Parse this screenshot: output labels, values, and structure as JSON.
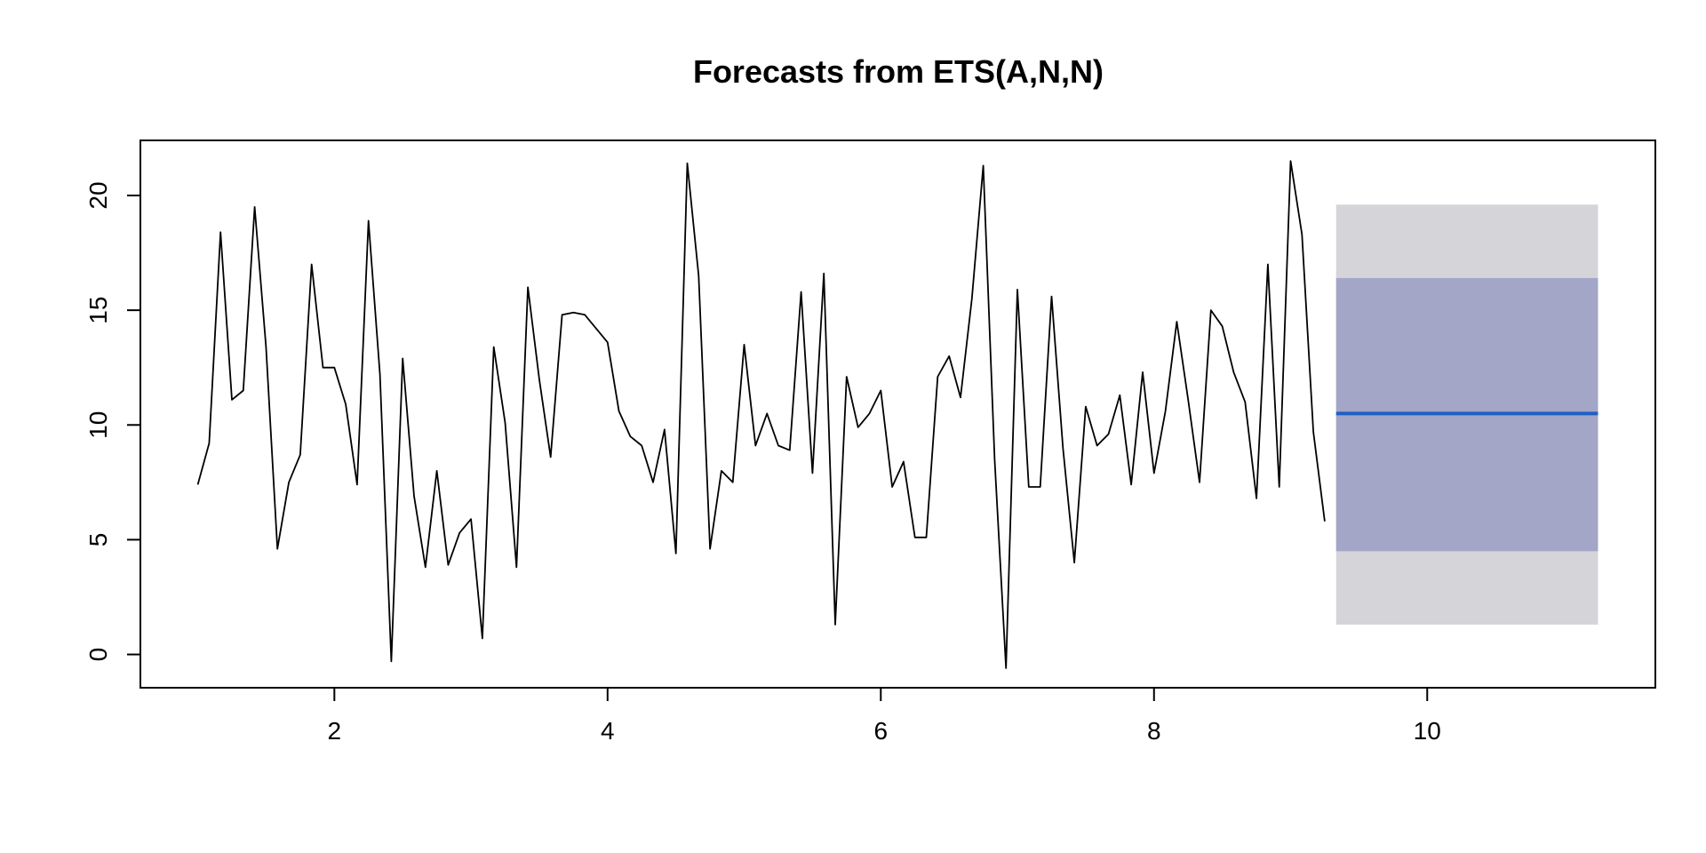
{
  "chart_data": {
    "type": "line",
    "title": "Forecasts from ETS(A,N,N)",
    "xlabel": "",
    "ylabel": "",
    "xlim": [
      0.58,
      11.67
    ],
    "ylim": [
      -1.45,
      22.4
    ],
    "x_ticks": [
      2,
      4,
      6,
      8,
      10
    ],
    "y_ticks": [
      0,
      5,
      10,
      15,
      20
    ],
    "grid": false,
    "colors": {
      "series": "#000000",
      "forecast": "#1F5FC4",
      "band80": "#A3A6C6",
      "band95": "#D4D4D9"
    },
    "series": [
      {
        "x": [
          1.0,
          1.0833,
          1.1667,
          1.25,
          1.3333,
          1.4167,
          1.5,
          1.5833,
          1.6667,
          1.75,
          1.8333,
          1.9167,
          2.0,
          2.0833,
          2.1667,
          2.25,
          2.3333,
          2.4167,
          2.5,
          2.5833,
          2.6667,
          2.75,
          2.8333,
          2.9167,
          3.0,
          3.0833,
          3.1667,
          3.25,
          3.3333,
          3.4167,
          3.5,
          3.5833,
          3.6667,
          3.75,
          3.8333,
          3.9167,
          4.0,
          4.0833,
          4.1667,
          4.25,
          4.3333,
          4.4167,
          4.5,
          4.5833,
          4.6667,
          4.75,
          4.8333,
          4.9167,
          5.0,
          5.0833,
          5.1667,
          5.25,
          5.3333,
          5.4167,
          5.5,
          5.5833,
          5.6667,
          5.75,
          5.8333,
          5.9167,
          6.0,
          6.0833,
          6.1667,
          6.25,
          6.3333,
          6.4167,
          6.5,
          6.5833,
          6.6667,
          6.75,
          6.8333,
          6.9167,
          7.0,
          7.0833,
          7.1667,
          7.25,
          7.3333,
          7.4167,
          7.5,
          7.5833,
          7.6667,
          7.75,
          7.8333,
          7.9167,
          8.0,
          8.0833,
          8.1667,
          8.25,
          8.3333,
          8.4167,
          8.5,
          8.5833,
          8.6667,
          8.75,
          8.8333,
          8.9167,
          9.0,
          9.0833,
          9.1667,
          9.25
        ],
        "values": [
          7.4,
          9.2,
          18.4,
          11.1,
          11.5,
          19.5,
          13.4,
          4.6,
          7.5,
          8.7,
          17.0,
          12.5,
          12.5,
          10.9,
          7.4,
          18.9,
          12.2,
          -0.3,
          12.9,
          6.9,
          3.8,
          8.0,
          3.9,
          5.3,
          5.9,
          0.7,
          13.4,
          10.1,
          3.8,
          16.0,
          12.0,
          8.6,
          14.8,
          14.9,
          14.8,
          14.2,
          13.6,
          10.6,
          9.5,
          9.1,
          7.5,
          9.8,
          4.4,
          21.4,
          16.5,
          4.6,
          8.0,
          7.5,
          13.5,
          9.1,
          10.5,
          9.1,
          8.9,
          15.8,
          7.9,
          16.6,
          1.3,
          12.1,
          9.9,
          10.5,
          11.5,
          7.3,
          8.4,
          5.1,
          5.1,
          12.1,
          13.0,
          11.2,
          15.5,
          21.3,
          8.5,
          -0.6,
          15.9,
          7.3,
          7.3,
          15.6,
          9.0,
          4.0,
          10.8,
          9.1,
          9.6,
          11.3,
          7.4,
          12.3,
          7.9,
          10.6,
          14.5,
          11.1,
          7.5,
          15.0,
          14.3,
          12.3,
          11.0,
          6.8,
          17.0,
          7.3,
          21.5,
          18.3,
          9.7,
          5.8
        ]
      }
    ],
    "forecast": {
      "x_start": 9.3333,
      "x_end": 11.25,
      "mean": 10.5,
      "lo80": 4.5,
      "hi80": 16.4,
      "lo95": 1.3,
      "hi95": 19.6
    }
  }
}
